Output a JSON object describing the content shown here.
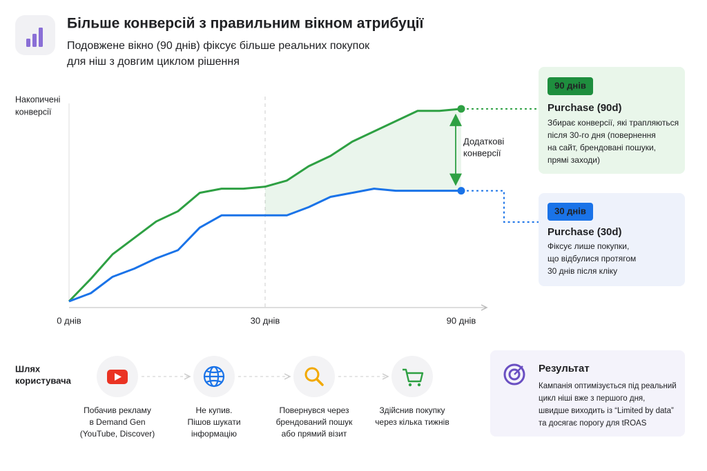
{
  "header": {
    "title": "Більше конверсій з правильним вікном атрибуції",
    "subtitle": [
      "Подовжене вікно (90 днів) фіксує більше реальних покупок",
      "для ніш з довгим циклом рішення"
    ]
  },
  "chart_data": {
    "type": "line",
    "y_label": [
      "Накопичені",
      "конверсії"
    ],
    "annotation": [
      "Додаткові",
      "конверсії"
    ],
    "categories": [
      "0 днів",
      null,
      null,
      null,
      null,
      null,
      null,
      null,
      null,
      "30 днів",
      null,
      null,
      null,
      null,
      null,
      null,
      null,
      null,
      "90 днів"
    ],
    "ylim": [
      0,
      100
    ],
    "series": [
      {
        "name": "Purchase (90d)",
        "color": "#2ea043",
        "values": [
          0,
          11,
          23,
          31,
          39,
          44,
          53,
          55,
          55,
          56,
          59,
          66,
          71,
          78,
          83,
          88,
          93,
          93,
          94
        ]
      },
      {
        "name": "Purchase (30d)",
        "color": "#1a73e8",
        "values": [
          0,
          4,
          12,
          16,
          21,
          25,
          36,
          42,
          42,
          42,
          42,
          46,
          51,
          53,
          55,
          54,
          54,
          54,
          54
        ]
      }
    ]
  },
  "legend_cards": [
    {
      "badge": "90 днів",
      "lines": [
        "Збирає конверсії, які трапляються",
        "після 30-го дня (повернення",
        "на сайт, брендовані пошуки,",
        "прямі заходи)"
      ]
    },
    {
      "badge": "30 днів",
      "lines": [
        "Фіксує лише покупки,",
        "що відбулися протягом",
        "30 днів після кліку"
      ]
    }
  ],
  "journey": {
    "title": [
      "Шлях",
      "користувача"
    ],
    "steps": [
      {
        "lines": [
          "Побачив рекламу",
          "в Demand Gen",
          "(YouTube, Discover)"
        ]
      },
      {
        "lines": [
          "Не купив.",
          "Пішов шукати",
          "інформацію"
        ]
      },
      {
        "lines": [
          "Повернувся через",
          "брендований пошук",
          "або прямий візит"
        ]
      },
      {
        "lines": [
          "Здійснив покупку",
          "через кілька тижнів"
        ]
      }
    ]
  },
  "result": {
    "title": "Результат",
    "lines": [
      "Кампанія оптимізується під реальний",
      "цикл ніші вже з першого дня,",
      "швидше виходить із “Limited by data”",
      "та досягає порогу для tROAS"
    ]
  }
}
